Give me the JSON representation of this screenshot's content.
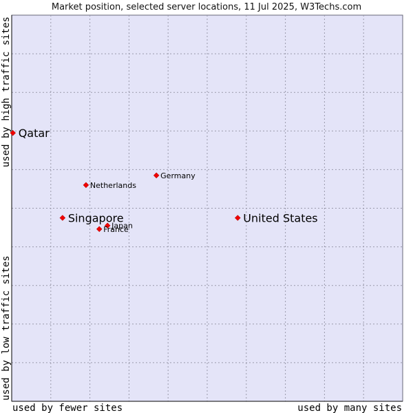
{
  "chart_data": {
    "type": "scatter",
    "title": "Market position, selected server locations, 11 Jul 2025, W3Techs.com",
    "xlabel_left": "used by fewer sites",
    "xlabel_right": "used by many sites",
    "ylabel_top": "used by high traffic sites",
    "ylabel_bottom": "used by low traffic sites",
    "xlim": [
      0,
      100
    ],
    "ylim": [
      0,
      100
    ],
    "grid": true,
    "colors": {
      "plot_background": "#e4e4f8",
      "grid": "#9999aa",
      "point": "#ee0000",
      "axis": "#000000"
    },
    "points": [
      {
        "name": "Qatar",
        "x": 0.3,
        "y": 69.5,
        "label_size": "large"
      },
      {
        "name": "Germany",
        "x": 37.0,
        "y": 58.5,
        "label_size": "small"
      },
      {
        "name": "Netherlands",
        "x": 19.0,
        "y": 56.0,
        "label_size": "small"
      },
      {
        "name": "Singapore",
        "x": 13.0,
        "y": 47.5,
        "label_size": "large"
      },
      {
        "name": "United States",
        "x": 57.8,
        "y": 47.5,
        "label_size": "large"
      },
      {
        "name": "Japan",
        "x": 24.5,
        "y": 45.5,
        "label_size": "small"
      },
      {
        "name": "France",
        "x": 22.4,
        "y": 44.6,
        "label_size": "small"
      }
    ]
  }
}
